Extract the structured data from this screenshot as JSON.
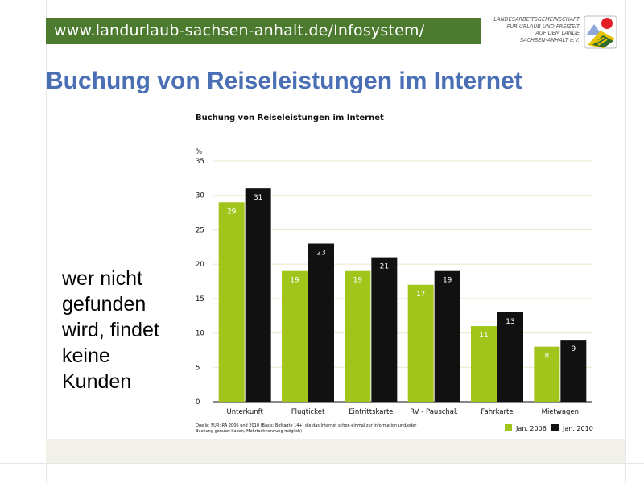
{
  "header": {
    "url": "www.landurlaub-sachsen-anhalt.de/Infosystem/"
  },
  "organization": {
    "lines": [
      "LANDESARBEITSGEMEINSCHAFT",
      "FÜR URLAUB UND FREIZEIT",
      "AUF DEM LANDE",
      "SACHSEN-ANHALT e.V."
    ]
  },
  "logo": {
    "icon": "sun-mountain-car-logo-icon"
  },
  "title": "Buchung von Reiseleistungen im Internet",
  "side_text": [
    "wer nicht",
    "gefunden",
    "wird, findet",
    "keine",
    "Kunden"
  ],
  "colors": {
    "header_green": "#4c7a2f",
    "title_blue": "#4a6fb5",
    "series_2006": "#a2c51c",
    "series_2010": "#111111"
  },
  "chart_data": {
    "type": "bar",
    "title": "Buchung von Reiseleistungen im Internet",
    "ylabel": "%",
    "ylim": [
      0,
      35
    ],
    "yticks": [
      "0",
      "5",
      "10",
      "15",
      "20",
      "25",
      "30",
      "35"
    ],
    "grid": true,
    "categories": [
      "Unterkunft",
      "Flugticket",
      "Eintrittskarte",
      "RV - Pauschal.",
      "Fahrkarte",
      "Mietwagen"
    ],
    "series": [
      {
        "name": "Jan. 2006",
        "color": "#a2c51c",
        "values": [
          29,
          19,
          19,
          17,
          11,
          8
        ]
      },
      {
        "name": "Jan. 2010",
        "color": "#111111",
        "values": [
          31,
          23,
          21,
          19,
          13,
          9
        ]
      }
    ],
    "legend": "bottom-right",
    "source_lines": [
      "Quelle: FUR; RA 2006 und 2010 (Basis: Befragte 14+, die das Internet schon einmal zur Information und/oder",
      "Buchung genutzt haben, Mehrfachnennung möglich)"
    ]
  }
}
